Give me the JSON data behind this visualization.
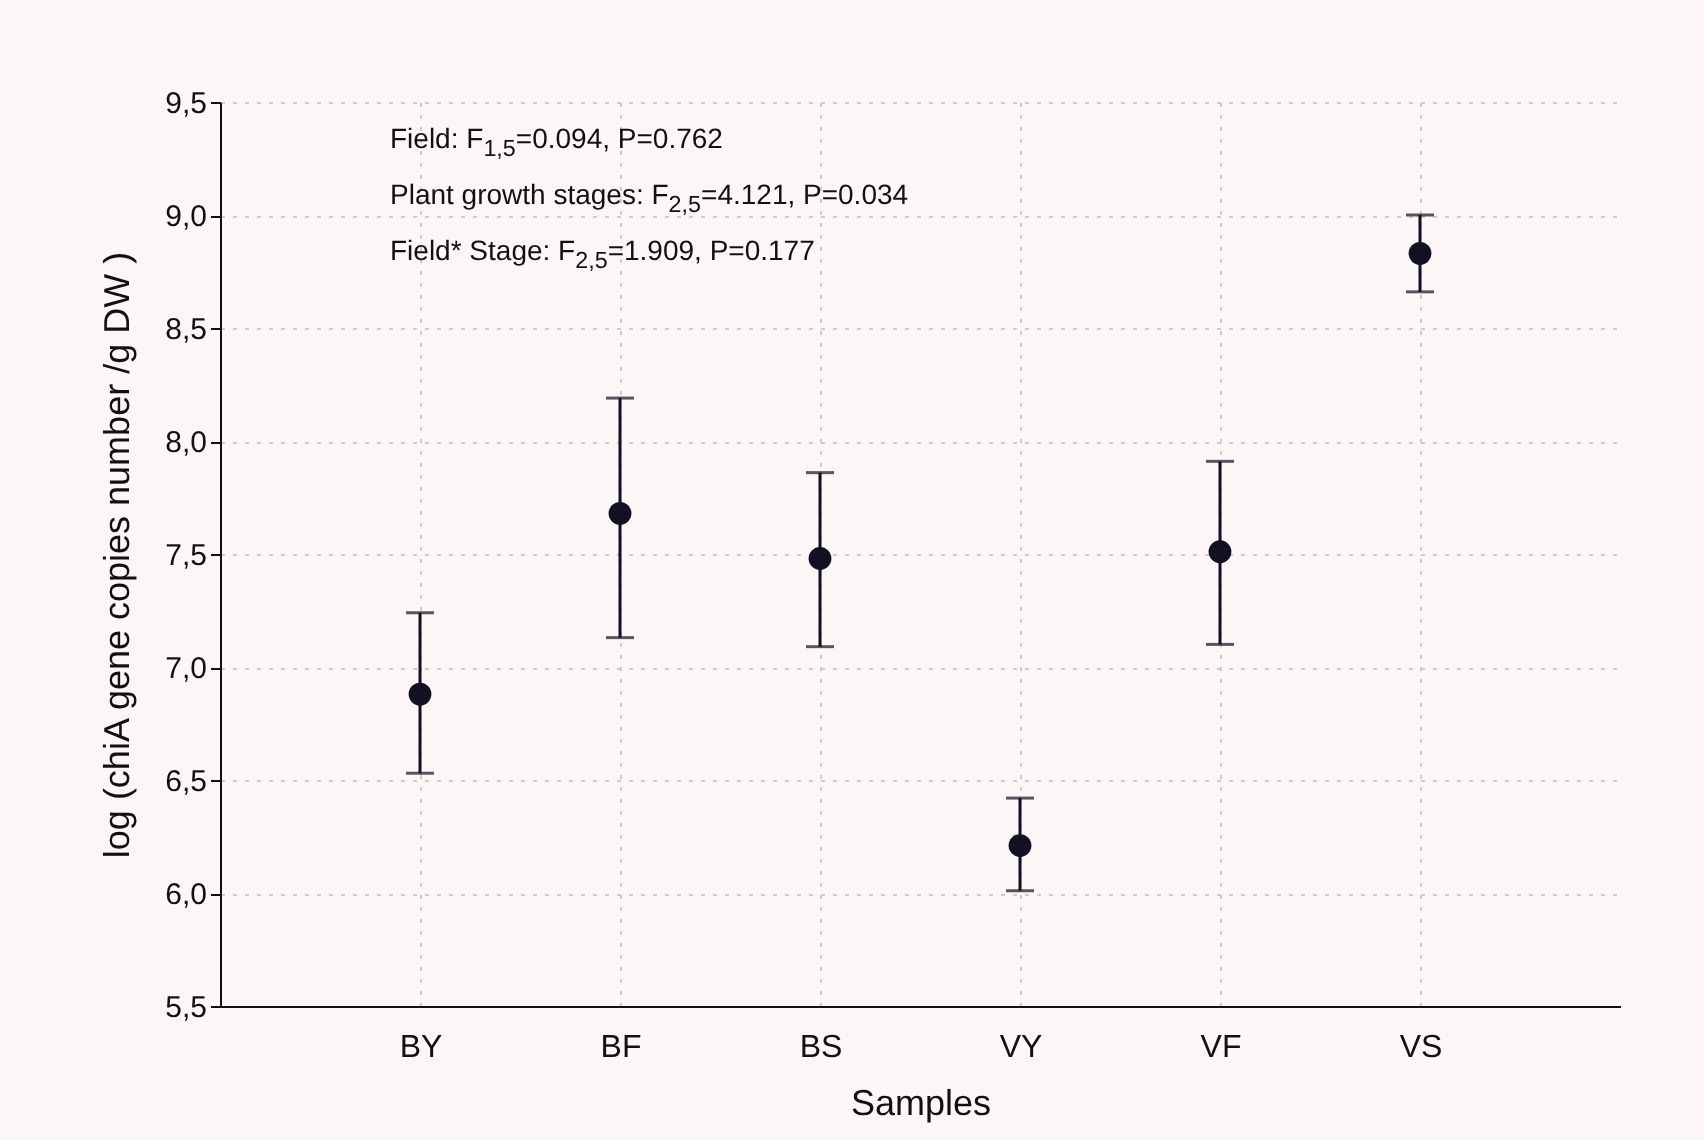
{
  "chart_data": {
    "type": "scatter",
    "xlabel": "Samples",
    "ylabel": "log (chiA gene copies number /g DW )",
    "categories": [
      "BY",
      "BF",
      "BS",
      "VY",
      "VF",
      "VS"
    ],
    "series": [
      {
        "color": "#111122",
        "values": [
          6.88,
          7.68,
          7.48,
          6.21,
          7.51,
          8.83
        ],
        "errors": [
          [
            6.53,
            7.24
          ],
          [
            7.13,
            8.19
          ],
          [
            7.09,
            7.86
          ],
          [
            6.01,
            6.42
          ],
          [
            7.1,
            7.91
          ],
          [
            8.66,
            9.0
          ]
        ]
      }
    ],
    "ylim": [
      5.5,
      9.5
    ],
    "yticks": [
      {
        "value": 5.5,
        "label": "5,5"
      },
      {
        "value": 6.0,
        "label": "6,0"
      },
      {
        "value": 6.5,
        "label": "6,5"
      },
      {
        "value": 7.0,
        "label": "7,0"
      },
      {
        "value": 7.5,
        "label": "7,5"
      },
      {
        "value": 8.0,
        "label": "8,0"
      },
      {
        "value": 8.5,
        "label": "8,5"
      },
      {
        "value": 9.0,
        "label": "9,0"
      },
      {
        "value": 9.5,
        "label": "9,5"
      }
    ],
    "annotations": [
      "Field: F$_{1,5}$=0.094, P=0.762",
      "Plant growth stages: F$_{2,5}$=4.121, P=0.034",
      "Field* Stage: F$_{2,5}$=1.909, P=0.177"
    ],
    "grid": true,
    "marker": "circle"
  }
}
